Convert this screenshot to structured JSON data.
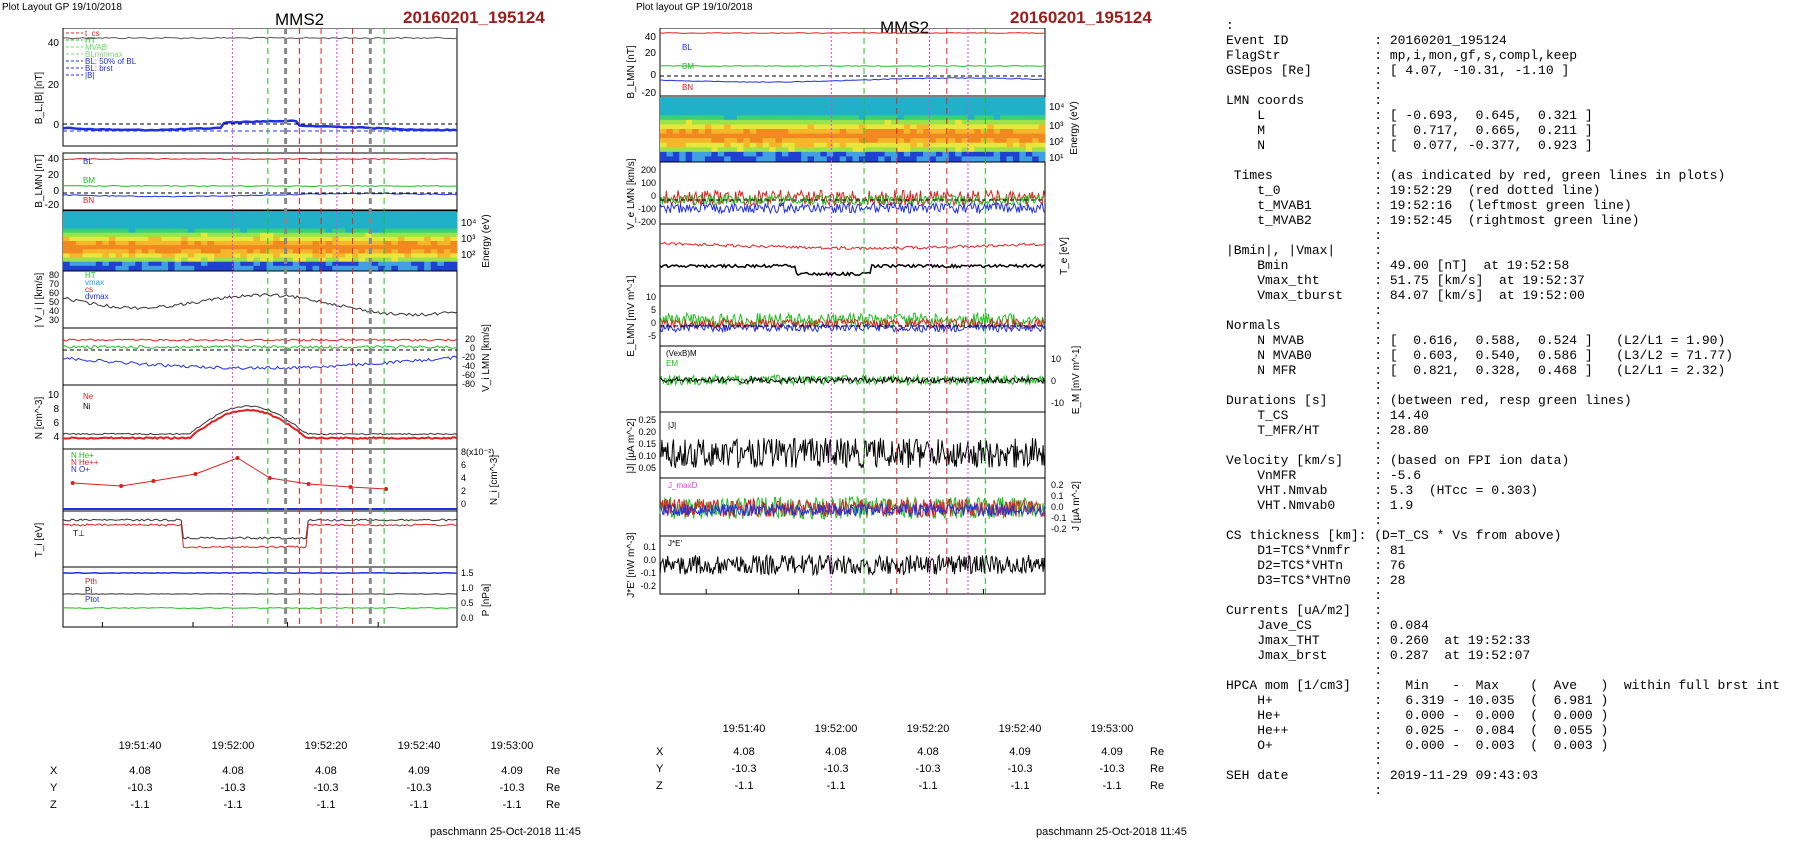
{
  "left_plot": {
    "header_left": "Plot Layout GP 19/10/2018",
    "spacecraft": "MMS2",
    "event_label": "20160201_195124",
    "footer": "paschmann 25-Oct-2018 11:45",
    "panels": [
      {
        "name": "BL |B|",
        "ylabel": "B_L,|B| [nT]",
        "ticks": [
          "40",
          "20",
          "0"
        ],
        "legend": [
          "t_cs",
          "HT",
          "MVAB",
          "BLminmax",
          "BL: 50% of BL",
          "BL: brst",
          "|B|"
        ]
      },
      {
        "name": "B LMN",
        "ylabel": "B_LMN [nT]",
        "ticks": [
          "40",
          "20",
          "0",
          "-20"
        ],
        "legend": [
          "BL",
          "BM",
          "BN"
        ]
      },
      {
        "name": "Spectrogram",
        "ylabel": "Energy (eV)",
        "ticks": [
          "10^4",
          "10^3",
          "10^2"
        ]
      },
      {
        "name": "|Vi|",
        "ylabel": "| V_i | [km/s]",
        "ticks": [
          "80",
          "70",
          "60",
          "50",
          "40",
          "30"
        ],
        "legend": [
          "HT",
          "vmax",
          "cs",
          "dvmax"
        ]
      },
      {
        "name": "Vi LMN",
        "ylabel": "V_i LMN [km/s]",
        "ticks": [
          "20",
          "0",
          "-20",
          "-40",
          "-60",
          "-80"
        ],
        "legend": [
          "VL",
          "VM",
          "VN"
        ]
      },
      {
        "name": "N",
        "ylabel": "N [cm^-3]",
        "ticks": [
          "10",
          "8",
          "6",
          "4"
        ],
        "legend": [
          "Ne",
          "Ni"
        ]
      },
      {
        "name": "N ions",
        "ylabel": "N_i [cm^-3]",
        "ticks": [
          "8(x10^-2)",
          "6",
          "4",
          "2",
          "0"
        ],
        "legend": [
          "N He+",
          "N He++",
          "N O+"
        ]
      },
      {
        "name": "Ti",
        "ylabel": "T_i [eV]",
        "legend": [
          "T⊥"
        ]
      },
      {
        "name": "P",
        "ylabel": "P [nPa]",
        "ticks": [
          "1.5",
          "1.0",
          "0.5",
          "0.0"
        ],
        "legend": [
          "Pth",
          "Pi",
          "Ptot"
        ]
      }
    ],
    "time_ticks": [
      "19:51:40",
      "19:52:00",
      "19:52:20",
      "19:52:40",
      "19:53:00"
    ],
    "coords": {
      "X": [
        "4.08",
        "4.08",
        "4.08",
        "4.09",
        "4.09"
      ],
      "Y": [
        "-10.3",
        "-10.3",
        "-10.3",
        "-10.3",
        "-10.3"
      ],
      "Z": [
        "-1.1",
        "-1.1",
        "-1.1",
        "-1.1",
        "-1.1"
      ],
      "unit": "Re"
    }
  },
  "right_plot": {
    "header_left": "Plot layout GP 19/10/2018",
    "spacecraft": "MMS2",
    "event_label": "20160201_195124",
    "footer": "paschmann 25-Oct-2018 11:45",
    "panels": [
      {
        "name": "B LMN",
        "ylabel": "B_LMN [nT]",
        "ticks": [
          "40",
          "20",
          "0",
          "-20"
        ],
        "legend": [
          "BL",
          "BM",
          "BN"
        ]
      },
      {
        "name": "Electron spectrogram",
        "ylabel": "Energy (eV)",
        "ticks": [
          "10^4",
          "10^3",
          "10^2",
          "10^1"
        ]
      },
      {
        "name": "Ve LMN",
        "ylabel": "V_e LMN [km/s]",
        "ticks": [
          "200",
          "100",
          "0",
          "-100",
          "-200"
        ],
        "legend": [
          "VL",
          "VM",
          "VN"
        ]
      },
      {
        "name": "Te",
        "ylabel": "T_e [eV]",
        "legend": [
          "T∥",
          "T⊥"
        ]
      },
      {
        "name": "E LMN",
        "ylabel": "E_LMN [mV m^-1]",
        "ticks": [
          "10",
          "5",
          "0",
          "-5"
        ],
        "legend": [
          "EL",
          "EM",
          "EN"
        ]
      },
      {
        "name": "EM",
        "ylabel": "E_M [mV m^-1]",
        "ticks": [
          "10",
          "0",
          "-10"
        ],
        "legend": [
          "(VexB)M",
          "EM"
        ]
      },
      {
        "name": "|J|",
        "ylabel": "|J| [µA m^-2]",
        "ticks": [
          "0.25",
          "0.20",
          "0.15",
          "0.10",
          "0.05"
        ],
        "legend": [
          "|J|"
        ]
      },
      {
        "name": "J",
        "ylabel": "J [µA m^-2]",
        "ticks": [
          "0.2",
          "0.1",
          "0.0",
          "-0.1",
          "-0.2"
        ],
        "legend": [
          "J_maxD",
          "JL",
          "JM",
          "JN"
        ]
      },
      {
        "name": "J.E",
        "ylabel": "J*E' [nW m^-3]",
        "ticks": [
          "0.1",
          "0.0",
          "-0.1",
          "-0.2"
        ],
        "legend": [
          "J*E'"
        ]
      }
    ],
    "time_ticks": [
      "19:51:40",
      "19:52:00",
      "19:52:20",
      "19:52:40",
      "19:53:00"
    ],
    "coords": {
      "X": [
        "4.08",
        "4.08",
        "4.08",
        "4.09",
        "4.09"
      ],
      "Y": [
        "-10.3",
        "-10.3",
        "-10.3",
        "-10.3",
        "-10.3"
      ],
      "Z": [
        "-1.1",
        "-1.1",
        "-1.1",
        "-1.1",
        "-1.1"
      ],
      "unit": "Re"
    }
  },
  "info_lines": [
    ":",
    "Event ID           : 20160201_195124",
    "FlagStr            : mp,i,mon,gf,s,compl,keep",
    "GSEpos [Re]        : [ 4.07, -10.31, -1.10 ]",
    "                   :",
    "LMN coords         :",
    "    L              : [ -0.693,  0.645,  0.321 ]",
    "    M              : [  0.717,  0.665,  0.211 ]",
    "    N              : [  0.077, -0.377,  0.923 ]",
    "                   :",
    " Times             : (as indicated by red, green lines in plots)",
    "    t_0            : 19:52:29  (red dotted line)",
    "    t_MVAB1        : 19:52:16  (leftmost green line)",
    "    t_MVAB2        : 19:52:45  (rightmost green line)",
    "                   :",
    "|Bmin|, |Vmax|     :",
    "    Bmin           : 49.00 [nT]  at 19:52:58",
    "    Vmax_tht       : 51.75 [km/s]  at 19:52:37",
    "    Vmax_tburst    : 84.07 [km/s]  at 19:52:00",
    "                   :",
    "Normals            :",
    "    N MVAB         : [  0.616,  0.588,  0.524 ]   (L2/L1 = 1.90)",
    "    N MVAB0        : [  0.603,  0.540,  0.586 ]   (L3/L2 = 71.77)",
    "    N MFR          : [  0.821,  0.328,  0.468 ]   (L2/L1 = 2.32)",
    "                   :",
    "Durations [s]      : (between red, resp green lines)",
    "    T_CS           : 14.40",
    "    T_MFR/HT       : 28.80",
    "                   :",
    "Velocity [km/s]    : (based on FPI ion data)",
    "    VnMFR          : -5.6",
    "    VHT.Nmvab      : 5.3  (HTcc = 0.303)",
    "    VHT.Nmvab0     : 1.9",
    "                   :",
    "CS thickness [km]: (D=T_CS * Vs from above)",
    "    D1=TCS*Vnmfr   : 81",
    "    D2=TCS*VHTn    : 76",
    "    D3=TCS*VHTn0   : 28",
    "                   :",
    "Currents [uA/m2]   :",
    "    Jave_CS        : 0.084",
    "    Jmax_THT       : 0.260  at 19:52:33",
    "    Jmax_brst      : 0.287  at 19:52:07",
    "                   :",
    "HPCA mom [1/cm3]   :   Min   -  Max    (  Ave   )  within full brst int",
    "    H+             :   6.319 - 10.035  (  6.981 )",
    "    He+            :   0.000 -  0.000  (  0.000 )",
    "    He++           :   0.025 -  0.084  (  0.055 )",
    "    O+             :   0.000 -  0.003  (  0.003 )",
    "                   :",
    "SEH date           : 2019-11-29 09:43:03",
    "                   :"
  ],
  "colors": {
    "red": "#e02020",
    "green": "#20c020",
    "blue": "#2030e0",
    "black": "#000000",
    "magenta": "#e040e0",
    "event": "#9b1c1c"
  },
  "chart_data": [
    {
      "type": "line",
      "title": "MMS2",
      "x_label": "",
      "x_ticks": [
        "19:51:40",
        "19:52:00",
        "19:52:20",
        "19:52:40",
        "19:53:00"
      ],
      "panels": [
        "B_L,|B| [nT]",
        "B_LMN [nT]",
        "Energy (eV)",
        "| V_i | [km/s]",
        "V_i LMN [km/s]",
        "N [cm^-3]",
        "N_i [cm^-3]",
        "T_i [eV]",
        "P [nPa]"
      ]
    },
    {
      "type": "line",
      "title": "MMS2",
      "x_ticks": [
        "19:51:40",
        "19:52:00",
        "19:52:20",
        "19:52:40",
        "19:53:00"
      ],
      "panels": [
        "B_LMN [nT]",
        "Energy (eV)",
        "V_e LMN [km/s]",
        "T_e [eV]",
        "E_LMN [mV m^-1]",
        "E_M [mV m^-1]",
        "|J| [µA m^-2]",
        "J [µA m^-2]",
        "J*E' [nW m^-3]"
      ]
    }
  ]
}
